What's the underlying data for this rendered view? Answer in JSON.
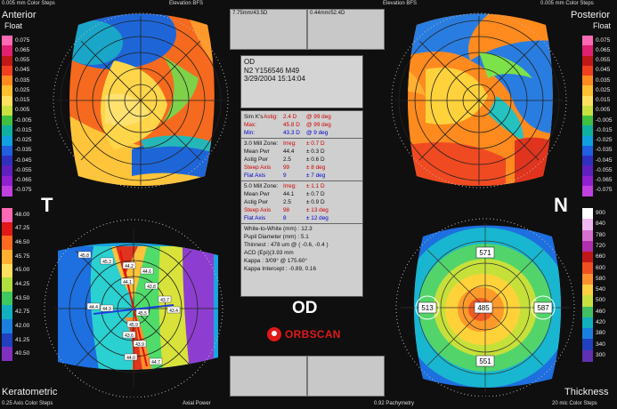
{
  "corner_labels": {
    "top_left_steps": "0.005 mm Color Steps",
    "top_left_mid": "Elevation BFS",
    "top_right_mid": "Elevation BFS",
    "top_right_steps": "0.005 mm Color Steps",
    "bottom_left_steps": "0.25 Axis Color Steps",
    "bottom_left_mid": "Axial Power",
    "bottom_right_mid": "0.92 Pachymetry",
    "bottom_right_steps": "20 mic Color Steps"
  },
  "map_titles": {
    "anterior": "Anterior",
    "anterior_sub": "Float",
    "posterior": "Posterior",
    "posterior_sub": "Float",
    "keratometric": "Keratometric",
    "thickness": "Thickness"
  },
  "side_letters": {
    "temporal": "T",
    "nasal": "N"
  },
  "eye_label": "OD",
  "brand": "ORBSCAN",
  "top_boxes": {
    "left": "7.75mm/43.5D",
    "right": "0.44mm/52.4D"
  },
  "patient": {
    "eye": "OD",
    "id": "N2 Y156546 M49",
    "datetime": "3/29/2004 15:14:04"
  },
  "sim_k": [
    {
      "label": "Sim K's",
      "label2": "Astig:",
      "value": "2.4 D",
      "axis": "@ 99 deg"
    },
    {
      "label": "Max:",
      "value": "45.8 D",
      "axis": "@ 99 deg"
    },
    {
      "label": "Min:",
      "value": "43.3 D",
      "axis": "@ 9 deg"
    }
  ],
  "zone3": {
    "title": "3.0 Mill Zone:",
    "irreg_label": "Irreg:",
    "irreg_value": "± 0.7 D",
    "rows": [
      {
        "label": "Mean Pwr",
        "a": "44.4",
        "b": "± 0.3 D"
      },
      {
        "label": "Astig Pwr",
        "a": "2.5",
        "b": "± 0.6 D"
      },
      {
        "label": "Steep Axis",
        "a": "99",
        "b": "± 8 deg"
      },
      {
        "label": "Flat Axis",
        "a": "9",
        "b": "± 7 deg"
      }
    ]
  },
  "zone5": {
    "title": "5.0 Mill Zone:",
    "irreg_label": "Irreg:",
    "irreg_value": "± 1.1 D",
    "rows": [
      {
        "label": "Mean Pwr",
        "a": "44.1",
        "b": "± 0.7 D"
      },
      {
        "label": "Astig Pwr",
        "a": "2.5",
        "b": "± 0.9 D"
      },
      {
        "label": "Steep Axis",
        "a": "98",
        "b": "± 13 deg"
      },
      {
        "label": "Flat Axis",
        "a": "8",
        "b": "± 12 deg"
      }
    ]
  },
  "measurements": [
    "White-to-White (mm) : 12.3",
    "Pupil Diameter (mm) : 5.1",
    "Thinnest : 478 um @ ( -0.6, -0.4 )",
    "ACD (Epi)(3.93 mm",
    "Kappa : 3/09° @ 175.60°",
    "Kappa Intercept : -0.89, 0.16"
  ],
  "scale_anterior": [
    "0.075",
    "0.065",
    "0.055",
    "0.045",
    "0.035",
    "0.025",
    "0.015",
    "0.005",
    "-0.005",
    "-0.015",
    "-0.025",
    "-0.035",
    "-0.045",
    "-0.055",
    "-0.065",
    "-0.075"
  ],
  "scale_posterior": [
    "0.075",
    "0.065",
    "0.055",
    "0.045",
    "0.035",
    "0.025",
    "0.015",
    "0.005",
    "-0.005",
    "-0.015",
    "-0.025",
    "-0.035",
    "-0.045",
    "-0.055",
    "-0.065",
    "-0.075"
  ],
  "scale_kerato": [
    "48.00",
    "47.25",
    "46.50",
    "45.75",
    "45.00",
    "44.25",
    "43.50",
    "42.75",
    "42.00",
    "41.25",
    "40.50"
  ],
  "scale_thickness": [
    "900",
    "840",
    "780",
    "720",
    "660",
    "600",
    "580",
    "540",
    "500",
    "460",
    "420",
    "380",
    "340",
    "300"
  ],
  "thickness_points": [
    "571",
    "513",
    "485",
    "587",
    "551"
  ],
  "kerato_points": [
    "45.8",
    "45.3",
    "44.2",
    "44.6",
    "44.1",
    "43.8",
    "43.7",
    "43.4",
    "44.4",
    "44.9",
    "45.5",
    "45.9",
    "43.6",
    "43.9",
    "44.0",
    "44.7"
  ],
  "colors": {
    "panel_bg": "#0f0f0f",
    "info_bg": "#cfcfcf",
    "accent_red": "#cc0000",
    "accent_blue": "#0000cc"
  }
}
